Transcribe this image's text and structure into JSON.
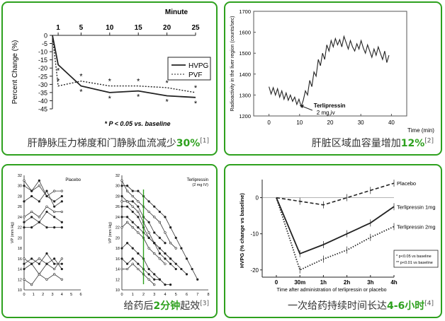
{
  "colors": {
    "accent": "#2ea11e",
    "frame": "#2ea11e",
    "plot": "#222222",
    "caption": "#333333"
  },
  "captions": [
    {
      "pre": "肝静脉压力梯度和门静脉血流减少",
      "hl": "30%",
      "post": "",
      "ref": "[1]"
    },
    {
      "pre": "肝脏区域血容量增加",
      "hl": "12%",
      "post": "",
      "ref": "[2]"
    },
    {
      "pre": "给药后",
      "hl": "2分钟",
      "post": "起效",
      "ref": "[3]"
    },
    {
      "pre": "一次给药持续时间长达",
      "hl": "4-6小时",
      "post": "",
      "ref": "[4]"
    }
  ],
  "chart_data": [
    {
      "type": "line",
      "xlabel": "Minute",
      "ylabel": "Percent Change (%)",
      "xticks": [
        1,
        5,
        10,
        15,
        20,
        25
      ],
      "yticks": [
        0,
        -5,
        -10,
        -15,
        -20,
        -25,
        -30,
        -35,
        -40,
        -45
      ],
      "xlim": [
        0,
        25
      ],
      "ylim": [
        -45,
        0
      ],
      "legend_position": "right",
      "footnote": "* P < 0.05 vs. baseline",
      "series": [
        {
          "name": "HVPG",
          "style": "solid",
          "x": [
            0,
            1,
            5,
            10,
            15,
            20,
            25
          ],
          "y": [
            0,
            -18,
            -31,
            -35,
            -34,
            -37,
            -38
          ]
        },
        {
          "name": "PVF",
          "style": "dotted",
          "x": [
            0,
            1,
            5,
            10,
            15,
            20,
            25
          ],
          "y": [
            0,
            -31,
            -28,
            -31,
            -31,
            -32,
            -35
          ]
        }
      ],
      "markers": "*"
    },
    {
      "type": "line",
      "xlabel": "Time (min)",
      "ylabel": "Radioactivity in the liver region (counts/sec)",
      "xticks": [
        0,
        10,
        20,
        30,
        40
      ],
      "yticks": [
        1200,
        1300,
        1400,
        1500,
        1600,
        1700
      ],
      "xlim": [
        -5,
        45
      ],
      "ylim": [
        1200,
        1700
      ],
      "annotation": {
        "lines": [
          "Terlipressin",
          "2 mg iv"
        ],
        "x": 10
      },
      "series": [
        {
          "style": "solid",
          "x": [
            0,
            0.7,
            1.4,
            2.1,
            2.8,
            3.5,
            4.2,
            4.9,
            5.6,
            6.3,
            7.0,
            7.7,
            8.4,
            9.1,
            9.8,
            10.5,
            11.2,
            11.9,
            12.6,
            13.3,
            14.0,
            14.7,
            15.4,
            16.1,
            16.8,
            17.5,
            18.2,
            18.9,
            19.6,
            20.3,
            21.0,
            21.7,
            22.4,
            23.1,
            23.8,
            24.5,
            25.2,
            25.9,
            26.6,
            27.3,
            28.0,
            28.7,
            29.4,
            30.1,
            30.8,
            31.5,
            32.2,
            32.9,
            33.6,
            34.3,
            35.0,
            35.7,
            36.4,
            37.1,
            37.8,
            38.5,
            39.2
          ],
          "y": [
            1340,
            1305,
            1335,
            1300,
            1330,
            1290,
            1320,
            1280,
            1310,
            1275,
            1300,
            1270,
            1290,
            1255,
            1280,
            1245,
            1275,
            1320,
            1300,
            1370,
            1340,
            1410,
            1390,
            1470,
            1440,
            1500,
            1470,
            1540,
            1510,
            1560,
            1530,
            1570,
            1540,
            1565,
            1530,
            1580,
            1550,
            1520,
            1560,
            1530,
            1510,
            1545,
            1520,
            1560,
            1525,
            1500,
            1540,
            1510,
            1480,
            1520,
            1490,
            1530,
            1500,
            1470,
            1510,
            1455,
            1490
          ]
        }
      ]
    },
    {
      "type": "line",
      "ylabel": "VP (mm Hg)",
      "subplots": [
        {
          "title": "Placebo",
          "xticks": [
            0,
            1,
            2,
            3,
            4,
            5,
            6
          ],
          "yticks": [
            10,
            12,
            14,
            16,
            18,
            20,
            22,
            24,
            26,
            28,
            30,
            32
          ],
          "xlim": [
            0,
            6
          ],
          "ylim": [
            10,
            32
          ],
          "series": [
            {
              "x": [
                0,
                0.8,
                1.6,
                2.4,
                3.2,
                4.0
              ],
              "y": [
                31,
                29,
                30,
                28,
                29,
                29
              ]
            },
            {
              "x": [
                0,
                0.8,
                1.6,
                2.4,
                3.2,
                4.0
              ],
              "y": [
                30,
                29,
                31,
                28,
                27,
                28
              ]
            },
            {
              "x": [
                0,
                0.8,
                1.6,
                2.4,
                3.2,
                4.0
              ],
              "y": [
                27,
                28,
                27,
                29,
                26,
                27
              ]
            },
            {
              "x": [
                0,
                0.8,
                1.6,
                2.4,
                3.2,
                4.0
              ],
              "y": [
                24,
                25,
                24,
                26,
                25,
                25
              ]
            },
            {
              "x": [
                0,
                0.8,
                1.6,
                2.4,
                3.2,
                4.0
              ],
              "y": [
                23,
                24,
                23,
                25,
                24,
                23
              ]
            },
            {
              "x": [
                0,
                0.8,
                1.6,
                2.4,
                3.2,
                4.0
              ],
              "y": [
                22,
                22,
                23,
                22,
                22,
                22
              ]
            },
            {
              "x": [
                0,
                0.8,
                1.6,
                2.4,
                3.2,
                4.0
              ],
              "y": [
                16,
                15,
                16,
                15,
                14,
                16
              ]
            },
            {
              "x": [
                0,
                0.8,
                1.6,
                2.4,
                3.2,
                4.0
              ],
              "y": [
                15,
                16,
                15,
                17,
                15,
                15
              ]
            },
            {
              "x": [
                0,
                0.8,
                1.6,
                2.4,
                3.2,
                4.0
              ],
              "y": [
                14,
                15,
                13,
                15,
                16,
                14
              ]
            },
            {
              "x": [
                0,
                0.8,
                1.6,
                2.4,
                3.2,
                4.0
              ],
              "y": [
                12,
                11,
                13,
                12,
                13,
                12
              ]
            }
          ]
        },
        {
          "title": "Terlipressin (2 mg IV)",
          "xticks": [
            0,
            1,
            2,
            3,
            4,
            5,
            6,
            7,
            8
          ],
          "yticks": [
            10,
            12,
            14,
            16,
            18,
            20,
            22,
            24,
            26,
            28,
            30,
            32
          ],
          "xlim": [
            0,
            8
          ],
          "ylim": [
            10,
            32
          ],
          "marker_x": 2,
          "series": [
            {
              "x": [
                0,
                0.5,
                1,
                1.5,
                2,
                2.5,
                3,
                3.5,
                4,
                4.5,
                5
              ],
              "y": [
                31,
                29,
                28,
                27,
                26,
                25,
                24,
                23,
                21,
                19,
                18
              ]
            },
            {
              "x": [
                0,
                0.5,
                1,
                1.5,
                2,
                2.5,
                3,
                3.5,
                4,
                4.5,
                5,
                5.5,
                6,
                6.5,
                7
              ],
              "y": [
                30,
                30,
                29,
                29,
                28,
                27,
                26,
                25,
                24,
                22,
                20,
                18,
                16,
                14,
                12
              ]
            },
            {
              "x": [
                0,
                0.5,
                1,
                1.5,
                2,
                2.5,
                3,
                3.5,
                4
              ],
              "y": [
                28,
                27,
                27,
                26,
                24,
                23,
                21,
                20,
                19
              ]
            },
            {
              "x": [
                0,
                0.5,
                1,
                1.5,
                2,
                2.5,
                3,
                3.5,
                4,
                4.5
              ],
              "y": [
                27,
                27,
                26,
                25,
                23,
                21,
                19,
                18,
                17,
                16
              ]
            },
            {
              "x": [
                0,
                0.5,
                1,
                1.5,
                2,
                2.5,
                3,
                3.5,
                4,
                4.5,
                5
              ],
              "y": [
                26,
                26,
                25,
                24,
                22,
                20,
                19,
                17,
                16,
                15,
                14
              ]
            },
            {
              "x": [
                0,
                0.5,
                1,
                1.5,
                2,
                2.5,
                3,
                3.5,
                4,
                4.5,
                5,
                5.5,
                6
              ],
              "y": [
                24,
                24,
                23,
                22,
                21,
                20,
                19,
                18,
                17,
                16,
                15,
                14,
                13
              ]
            },
            {
              "x": [
                0,
                0.5,
                1,
                1.5,
                2,
                2.5,
                3,
                3.5,
                4
              ],
              "y": [
                22,
                23,
                22,
                21,
                20,
                18,
                17,
                16,
                15
              ]
            },
            {
              "x": [
                0,
                0.5,
                1,
                1.5,
                2,
                2.5,
                3,
                3.5
              ],
              "y": [
                18,
                19,
                18,
                17,
                16,
                14,
                13,
                12
              ]
            },
            {
              "x": [
                0,
                0.5,
                1,
                1.5,
                2,
                2.5,
                3,
                3.5,
                4,
                4.5
              ],
              "y": [
                16,
                15,
                16,
                15,
                14,
                13,
                12,
                12,
                11,
                11
              ]
            },
            {
              "x": [
                0,
                0.5,
                1,
                1.5,
                2,
                2.5,
                3
              ],
              "y": [
                14,
                14,
                15,
                14,
                13,
                12,
                11
              ]
            }
          ]
        }
      ]
    },
    {
      "type": "line",
      "xlabel": "Time after administration of terlipressin or placebo",
      "ylabel": "HVPG (% change vs baseline)",
      "categories": [
        "0",
        "30m",
        "1h",
        "2h",
        "3h",
        "4h"
      ],
      "yticks": [
        0,
        -10,
        -20
      ],
      "ylim": [
        -22,
        5
      ],
      "legend_position": "right",
      "footnote": [
        "* p<0.05 vs baseline",
        "** p<0.01 vs baseline"
      ],
      "series": [
        {
          "name": "Placebo",
          "style": "dashed",
          "x": [
            0,
            1,
            2,
            3,
            4,
            5
          ],
          "y": [
            0,
            -1,
            -2,
            0,
            2,
            4
          ]
        },
        {
          "name": "Terlipressin 1mg",
          "style": "solid",
          "x": [
            0,
            1,
            2,
            3,
            4,
            5
          ],
          "y": [
            0,
            -15.5,
            -13,
            -10,
            -7,
            -2.5
          ]
        },
        {
          "name": "Terlipressin 2mg",
          "style": "dotted",
          "x": [
            0,
            1,
            2,
            3,
            4,
            5
          ],
          "y": [
            0,
            -20,
            -17,
            -14.5,
            -11,
            -8
          ]
        }
      ]
    }
  ]
}
